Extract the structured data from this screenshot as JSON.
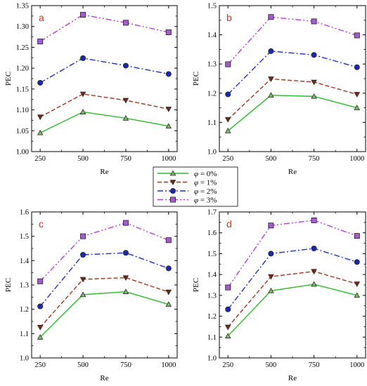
{
  "chart_data": [
    {
      "panel_label": "a",
      "type": "line",
      "x": [
        250,
        500,
        750,
        1000
      ],
      "xlabel": "Re",
      "ylabel": "PEC",
      "xlim": [
        200,
        1050
      ],
      "ylim": [
        1.0,
        1.35
      ],
      "yticks": [
        "1.00",
        "1.05",
        "1.10",
        "1.15",
        "1.20",
        "1.25",
        "1.30",
        "1.35"
      ],
      "xticks": [
        "250",
        "500",
        "750",
        "1000"
      ],
      "series": [
        {
          "name": "φ = 0%",
          "values": [
            1.045,
            1.095,
            1.08,
            1.061
          ]
        },
        {
          "name": "φ = 1%",
          "values": [
            1.083,
            1.138,
            1.123,
            1.102
          ]
        },
        {
          "name": "φ = 2%",
          "values": [
            1.165,
            1.224,
            1.206,
            1.186
          ]
        },
        {
          "name": "φ = 3%",
          "values": [
            1.264,
            1.328,
            1.309,
            1.286
          ]
        }
      ]
    },
    {
      "panel_label": "b",
      "type": "line",
      "x": [
        250,
        500,
        750,
        1000
      ],
      "xlabel": "Re",
      "ylabel": "PEC",
      "xlim": [
        200,
        1050
      ],
      "ylim": [
        1.0,
        1.5
      ],
      "yticks": [
        "1.0",
        "1.1",
        "1.2",
        "1.3",
        "1.4",
        "1.5"
      ],
      "xticks": [
        "250",
        "500",
        "750",
        "1000"
      ],
      "series": [
        {
          "name": "φ = 0%",
          "values": [
            1.071,
            1.193,
            1.189,
            1.15
          ]
        },
        {
          "name": "φ = 1%",
          "values": [
            1.11,
            1.249,
            1.238,
            1.196
          ]
        },
        {
          "name": "φ = 2%",
          "values": [
            1.196,
            1.344,
            1.331,
            1.289
          ]
        },
        {
          "name": "φ = 3%",
          "values": [
            1.299,
            1.461,
            1.446,
            1.398
          ]
        }
      ]
    },
    {
      "panel_label": "c",
      "type": "line",
      "x": [
        250,
        500,
        750,
        1000
      ],
      "xlabel": "Re",
      "ylabel": "PEC",
      "xlim": [
        200,
        1050
      ],
      "ylim": [
        1.0,
        1.6
      ],
      "yticks": [
        "1.0",
        "1.1",
        "1.2",
        "1.3",
        "1.4",
        "1.5",
        "1.6"
      ],
      "xticks": [
        "250",
        "500",
        "750",
        "1000"
      ],
      "series": [
        {
          "name": "φ = 0%",
          "values": [
            1.085,
            1.26,
            1.272,
            1.22
          ]
        },
        {
          "name": "φ = 1%",
          "values": [
            1.126,
            1.323,
            1.33,
            1.271
          ]
        },
        {
          "name": "φ = 2%",
          "values": [
            1.212,
            1.424,
            1.432,
            1.368
          ]
        },
        {
          "name": "φ = 3%",
          "values": [
            1.315,
            1.5,
            1.555,
            1.484
          ]
        }
      ]
    },
    {
      "panel_label": "d",
      "type": "line",
      "x": [
        250,
        500,
        750,
        1000
      ],
      "xlabel": "Re",
      "ylabel": "PEC",
      "xlim": [
        200,
        1050
      ],
      "ylim": [
        1.0,
        1.7
      ],
      "yticks": [
        "1.0",
        "1.1",
        "1.2",
        "1.3",
        "1.4",
        "1.5",
        "1.6",
        "1.7"
      ],
      "xticks": [
        "250",
        "500",
        "750",
        "1000"
      ],
      "series": [
        {
          "name": "φ = 0%",
          "values": [
            1.105,
            1.322,
            1.353,
            1.3
          ]
        },
        {
          "name": "φ = 1%",
          "values": [
            1.148,
            1.39,
            1.415,
            1.355
          ]
        },
        {
          "name": "φ = 2%",
          "values": [
            1.233,
            1.5,
            1.525,
            1.46
          ]
        },
        {
          "name": "φ = 3%",
          "values": [
            1.338,
            1.635,
            1.66,
            1.585
          ]
        }
      ]
    }
  ],
  "legend": {
    "placement": "center",
    "entries": [
      {
        "symbol": "φ",
        "text": " = 0%"
      },
      {
        "symbol": "φ",
        "text": " = 1%"
      },
      {
        "symbol": "φ",
        "text": " = 2%"
      },
      {
        "symbol": "φ",
        "text": " = 3%"
      }
    ]
  },
  "styles": {
    "series_colors": [
      "#2db82d",
      "#a0341c",
      "#1f2fc7",
      "#b83cd6"
    ],
    "series_dash": [
      "solid",
      "dashed",
      "dashdot",
      "dashdotdot"
    ],
    "series_markers": [
      "triangle-up",
      "triangle-down",
      "circle",
      "square"
    ],
    "marker_fills": [
      "#7fbf6a",
      "#7a2a14",
      "#1a2ab0",
      "#a45ad0"
    ],
    "panel_label_color": "#c0392b"
  }
}
